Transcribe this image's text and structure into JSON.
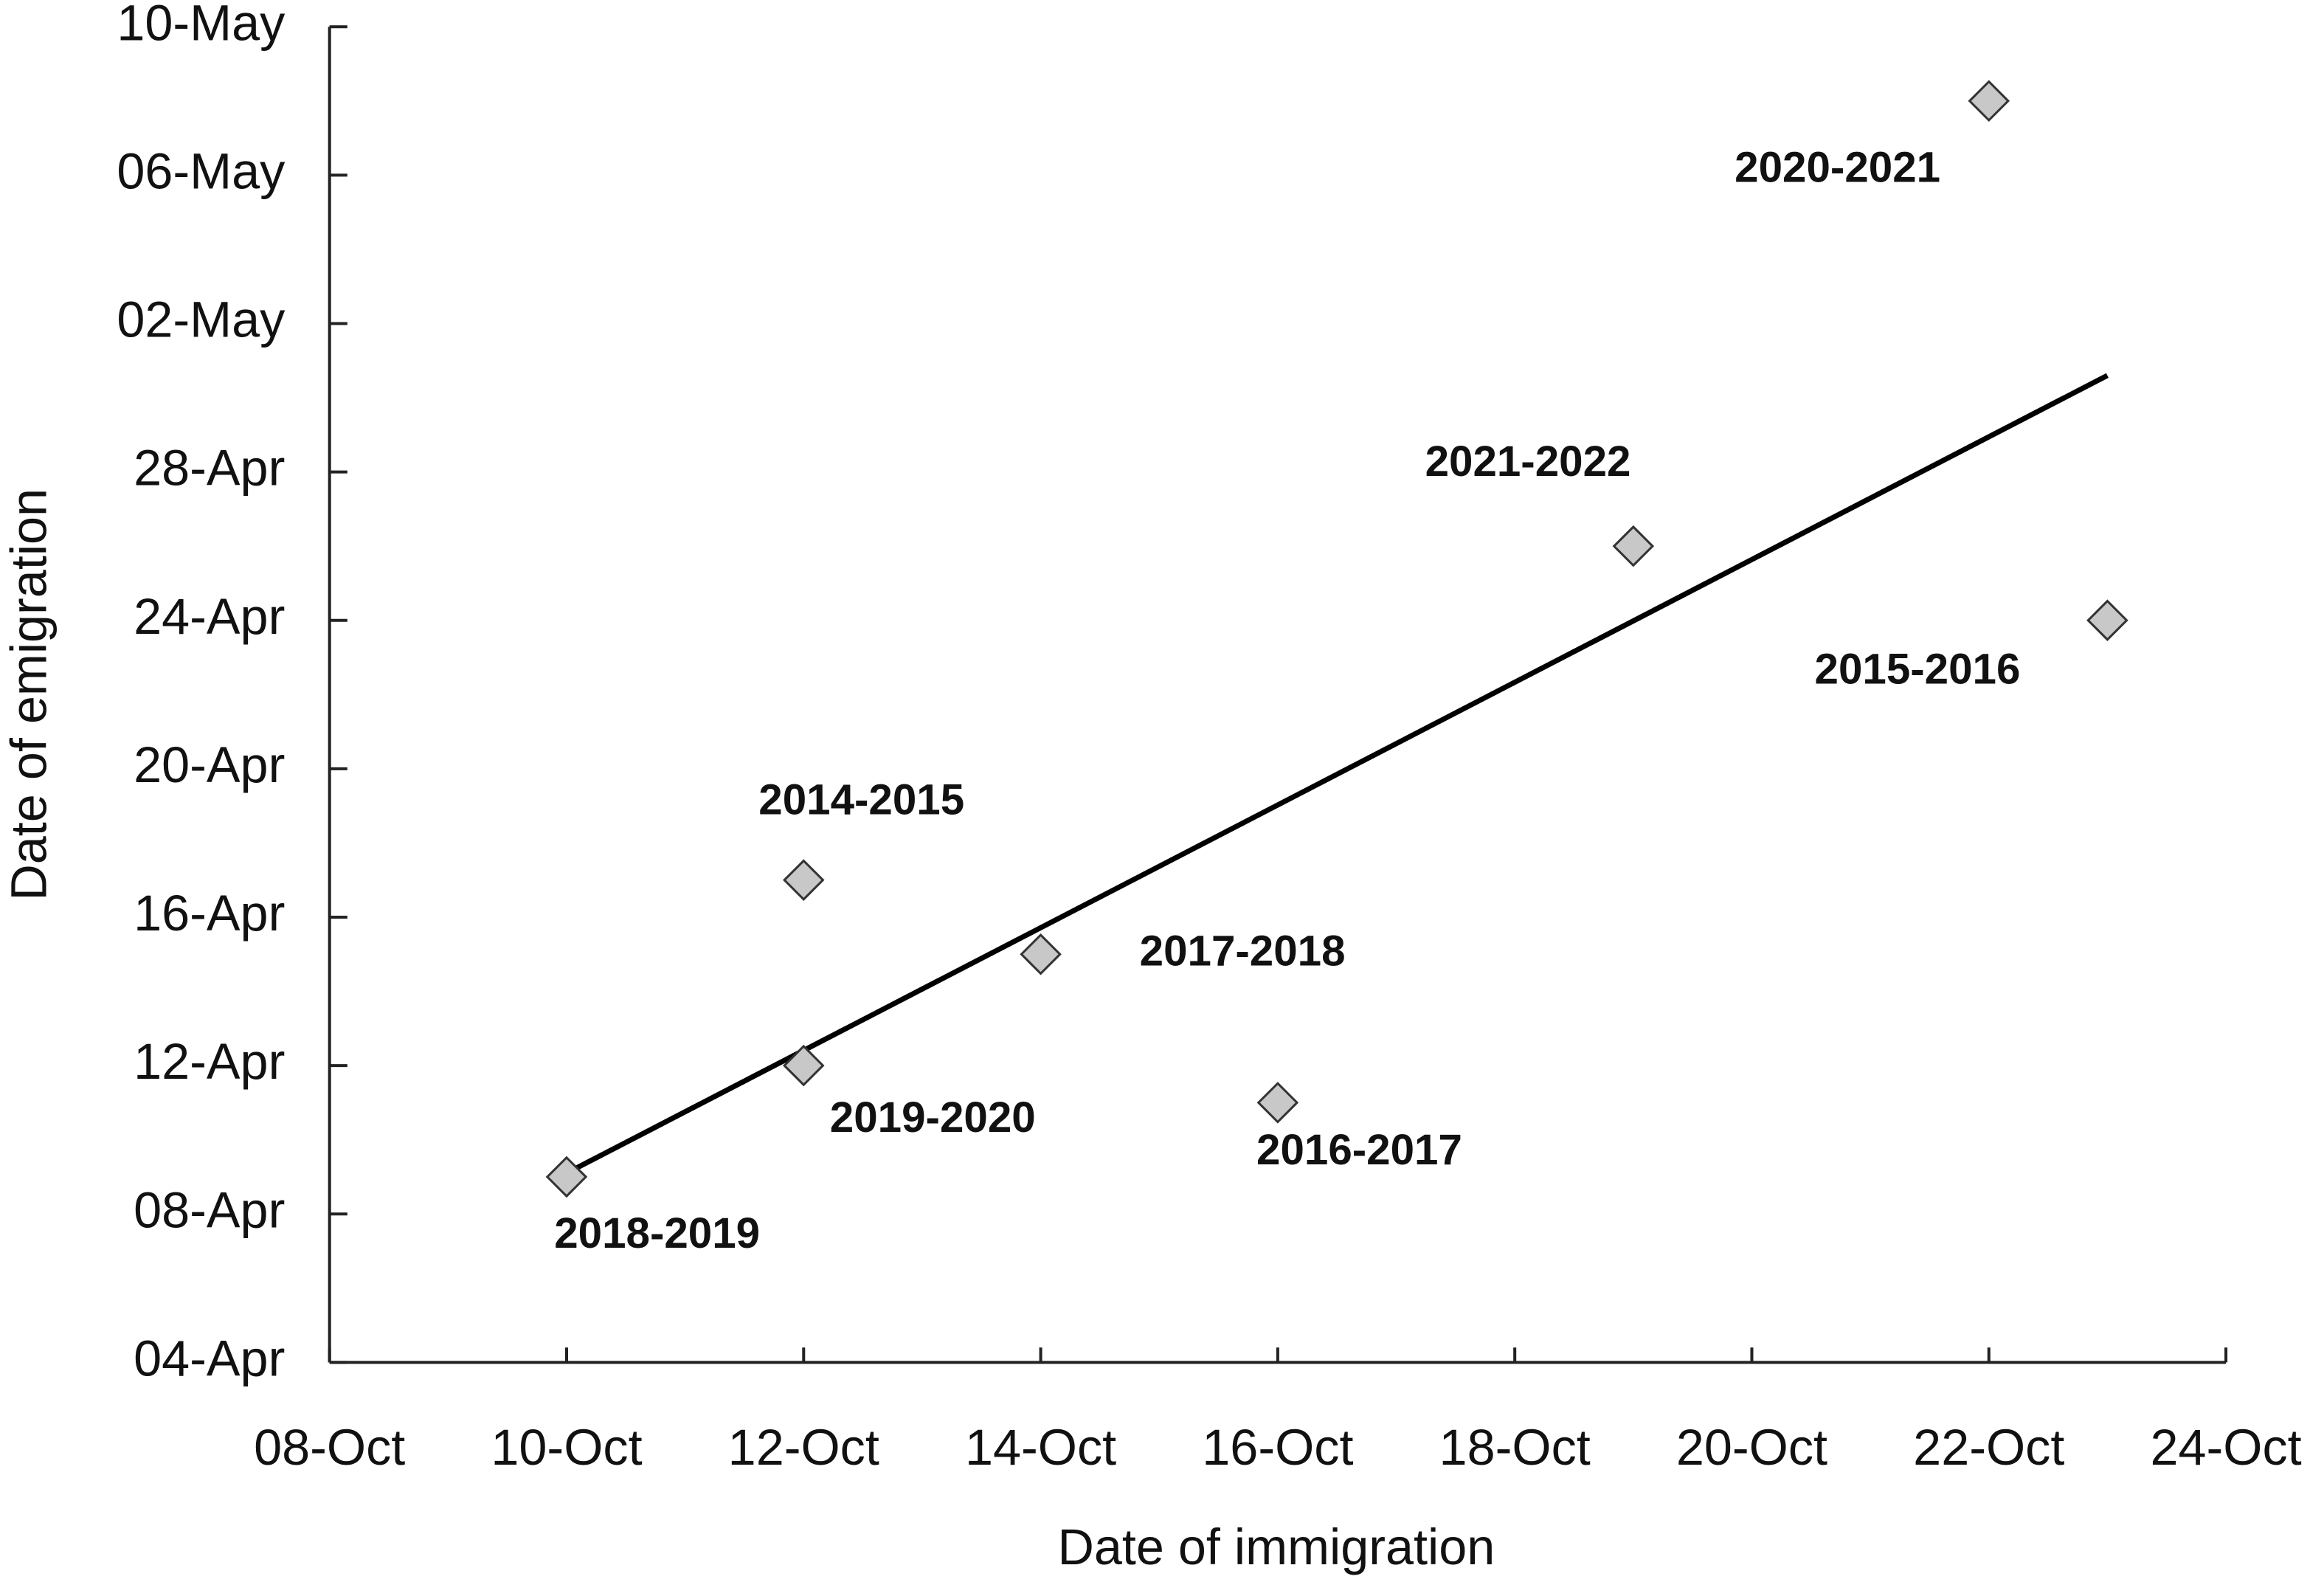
{
  "chart_data": {
    "type": "scatter",
    "x_label": "Date of immigration",
    "y_label": "Date of emigration",
    "xlim": [
      281,
      297
    ],
    "xticks": [
      {
        "value": 281,
        "label": "08-Oct"
      },
      {
        "value": 283,
        "label": "10-Oct"
      },
      {
        "value": 285,
        "label": "12-Oct"
      },
      {
        "value": 287,
        "label": "14-Oct"
      },
      {
        "value": 289,
        "label": "16-Oct"
      },
      {
        "value": 291,
        "label": "18-Oct"
      },
      {
        "value": 293,
        "label": "20-Oct"
      },
      {
        "value": 295,
        "label": "22-Oct"
      },
      {
        "value": 297,
        "label": "24-Oct"
      }
    ],
    "ylim": [
      94,
      130
    ],
    "yticks": [
      {
        "value": 94,
        "label": "04-Apr"
      },
      {
        "value": 98,
        "label": "08-Apr"
      },
      {
        "value": 102,
        "label": "12-Apr"
      },
      {
        "value": 106,
        "label": "16-Apr"
      },
      {
        "value": 110,
        "label": "20-Apr"
      },
      {
        "value": 114,
        "label": "24-Apr"
      },
      {
        "value": 118,
        "label": "28-Apr"
      },
      {
        "value": 122,
        "label": "02-May"
      },
      {
        "value": 126,
        "label": "06-May"
      },
      {
        "value": 130,
        "label": "10-May"
      }
    ],
    "points": {
      "labels": [
        "2018-2019",
        "2019-2020",
        "2014-2015",
        "2017-2018",
        "2016-2017",
        "2021-2022",
        "2020-2021",
        "2015-2016"
      ],
      "x": [
        283,
        285,
        285,
        287,
        289,
        292,
        295,
        296
      ],
      "y": [
        99,
        102,
        107,
        105,
        101,
        116,
        128,
        114
      ],
      "color": "#c8c8c8"
    },
    "trendline": {
      "x": [
        283,
        296
      ],
      "y": [
        99.1,
        120.6
      ],
      "color": "#000000"
    }
  }
}
